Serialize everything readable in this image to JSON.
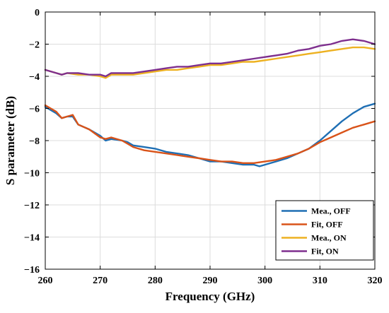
{
  "chart_data": {
    "type": "line",
    "title": "",
    "xlabel": "Frequency (GHz)",
    "ylabel": "S parameter (dB)",
    "xlim": [
      260,
      320
    ],
    "ylim": [
      -16,
      0
    ],
    "xticks": [
      260,
      270,
      280,
      290,
      300,
      310,
      320
    ],
    "yticks": [
      0,
      -2,
      -4,
      -6,
      -8,
      -10,
      -12,
      -14,
      -16
    ],
    "grid": true,
    "legend_position": "bottom-right",
    "series": [
      {
        "name": "Mea., OFF",
        "color": "#1f6fb4",
        "x": [
          260,
          262,
          263,
          264,
          265,
          266,
          268,
          270,
          271,
          272,
          274,
          275,
          276,
          278,
          280,
          282,
          284,
          286,
          288,
          290,
          292,
          294,
          296,
          298,
          299,
          300,
          302,
          304,
          306,
          308,
          310,
          312,
          314,
          316,
          318,
          320
        ],
        "y": [
          -5.9,
          -6.3,
          -6.6,
          -6.5,
          -6.5,
          -7.0,
          -7.3,
          -7.7,
          -8.0,
          -7.9,
          -8.0,
          -8.1,
          -8.3,
          -8.4,
          -8.5,
          -8.7,
          -8.8,
          -8.9,
          -9.1,
          -9.3,
          -9.3,
          -9.4,
          -9.5,
          -9.5,
          -9.6,
          -9.5,
          -9.3,
          -9.1,
          -8.8,
          -8.5,
          -8.0,
          -7.4,
          -6.8,
          -6.3,
          -5.9,
          -5.7
        ]
      },
      {
        "name": "Fit, OFF",
        "color": "#d95319",
        "x": [
          260,
          262,
          263,
          264,
          265,
          266,
          268,
          270,
          271,
          272,
          274,
          275,
          276,
          278,
          280,
          282,
          284,
          286,
          288,
          290,
          292,
          294,
          296,
          298,
          300,
          302,
          304,
          306,
          308,
          310,
          312,
          314,
          316,
          318,
          320
        ],
        "y": [
          -5.8,
          -6.2,
          -6.6,
          -6.5,
          -6.4,
          -7.0,
          -7.3,
          -7.8,
          -7.9,
          -7.8,
          -8.0,
          -8.2,
          -8.4,
          -8.6,
          -8.7,
          -8.8,
          -8.9,
          -9.0,
          -9.1,
          -9.2,
          -9.3,
          -9.3,
          -9.4,
          -9.4,
          -9.3,
          -9.2,
          -9.0,
          -8.8,
          -8.5,
          -8.1,
          -7.8,
          -7.5,
          -7.2,
          -7.0,
          -6.8
        ]
      },
      {
        "name": "Mea., ON",
        "color": "#edb120",
        "x": [
          260,
          262,
          263,
          264,
          266,
          268,
          270,
          271,
          272,
          274,
          276,
          278,
          280,
          282,
          284,
          286,
          288,
          290,
          292,
          294,
          296,
          298,
          300,
          302,
          304,
          306,
          308,
          310,
          312,
          314,
          316,
          318,
          320
        ],
        "y": [
          -3.6,
          -3.8,
          -3.9,
          -3.8,
          -3.9,
          -3.9,
          -4.0,
          -4.1,
          -3.9,
          -3.9,
          -3.9,
          -3.8,
          -3.7,
          -3.6,
          -3.6,
          -3.5,
          -3.4,
          -3.3,
          -3.3,
          -3.2,
          -3.1,
          -3.1,
          -3.0,
          -2.9,
          -2.8,
          -2.7,
          -2.6,
          -2.5,
          -2.4,
          -2.3,
          -2.2,
          -2.2,
          -2.3
        ]
      },
      {
        "name": "Fit, ON",
        "color": "#7e2f8e",
        "x": [
          260,
          262,
          263,
          264,
          266,
          268,
          270,
          271,
          272,
          274,
          276,
          278,
          280,
          282,
          284,
          286,
          288,
          290,
          292,
          294,
          296,
          298,
          300,
          302,
          304,
          306,
          308,
          310,
          312,
          314,
          316,
          318,
          320
        ],
        "y": [
          -3.6,
          -3.8,
          -3.9,
          -3.8,
          -3.8,
          -3.9,
          -3.9,
          -4.0,
          -3.8,
          -3.8,
          -3.8,
          -3.7,
          -3.6,
          -3.5,
          -3.4,
          -3.4,
          -3.3,
          -3.2,
          -3.2,
          -3.1,
          -3.0,
          -2.9,
          -2.8,
          -2.7,
          -2.6,
          -2.4,
          -2.3,
          -2.1,
          -2.0,
          -1.8,
          -1.7,
          -1.8,
          -2.0
        ]
      }
    ]
  }
}
